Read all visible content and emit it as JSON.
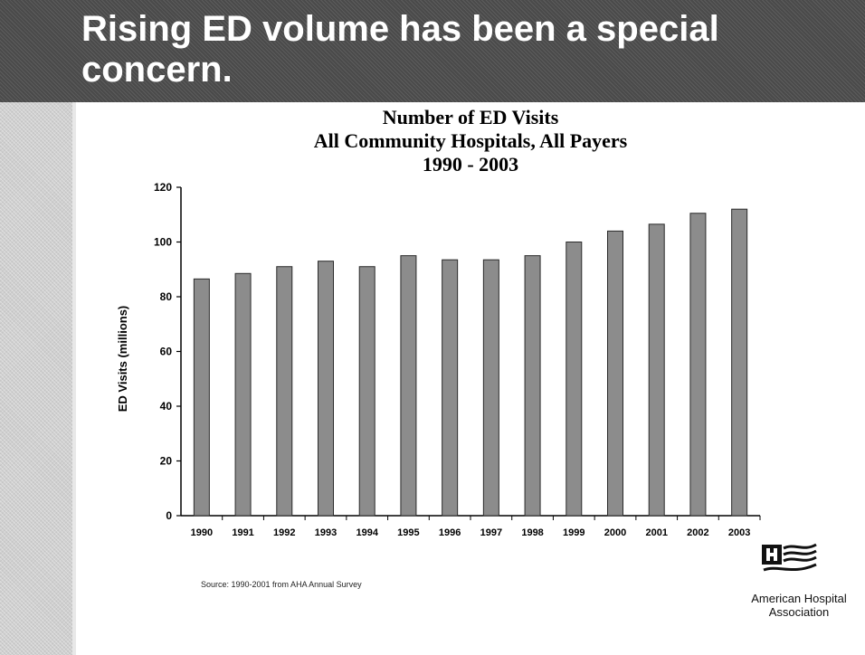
{
  "slide": {
    "title": "Rising ED volume has been a special concern."
  },
  "colors": {
    "header_bg": "#4a4a4a",
    "bar_fill": "#8c8c8c",
    "bar_stroke": "#2a2a2a",
    "text": "#000000"
  },
  "chart_data": {
    "type": "bar",
    "title_lines": [
      "Number of ED Visits",
      "All Community Hospitals, All Payers",
      "1990 - 2003"
    ],
    "xlabel": "",
    "ylabel": "ED Visits (millions)",
    "categories": [
      "1990",
      "1991",
      "1992",
      "1993",
      "1994",
      "1995",
      "1996",
      "1997",
      "1998",
      "1999",
      "2000",
      "2001",
      "2002",
      "2003"
    ],
    "values": [
      86.5,
      88.5,
      91,
      93,
      91,
      95,
      93.5,
      93.5,
      95,
      100,
      104,
      106.5,
      110.5,
      112
    ],
    "ylim": [
      0,
      120
    ],
    "yticks": [
      0,
      20,
      40,
      60,
      80,
      100,
      120
    ],
    "grid": false,
    "legend": "none"
  },
  "source": {
    "text": "Source: 1990-2001 from AHA Annual Survey"
  },
  "logo": {
    "icon": "aha-flag-logo-icon",
    "line1": "American Hospital",
    "line2": "Association"
  }
}
